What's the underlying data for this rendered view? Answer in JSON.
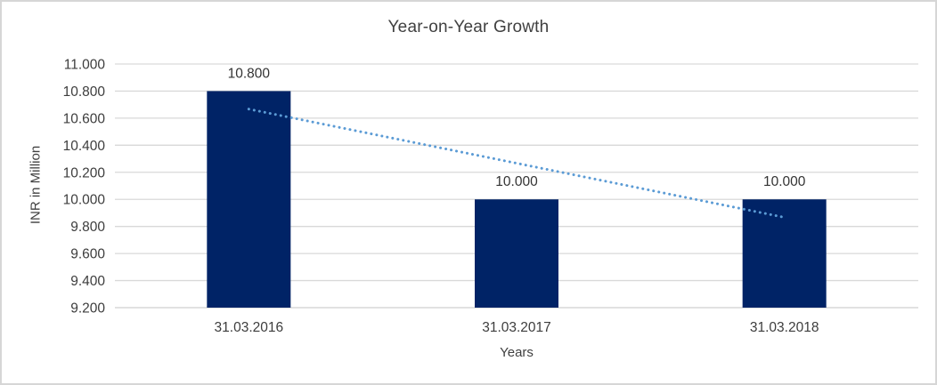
{
  "chart_data": {
    "type": "bar",
    "title": "Year-on-Year Growth",
    "xlabel": "Years",
    "ylabel": "INR in Million",
    "categories": [
      "31.03.2016",
      "31.03.2017",
      "31.03.2018"
    ],
    "values": [
      10.8,
      10.0,
      10.0
    ],
    "value_labels": [
      "10.800",
      "10.000",
      "10.000"
    ],
    "ylim": [
      9.2,
      11.0
    ],
    "ytick_step": 0.2,
    "ytick_labels": [
      "9.200",
      "9.400",
      "9.600",
      "9.800",
      "10.000",
      "10.200",
      "10.400",
      "10.600",
      "10.800",
      "11.000"
    ],
    "grid": true,
    "legend": false,
    "bar_color": "#002366",
    "trendline": {
      "type": "linear",
      "style": "dotted",
      "color": "#5B9BD5",
      "start_value": 10.667,
      "end_value": 9.867
    }
  },
  "colors": {
    "gridline": "#d9d9d9",
    "axis_line": "#cfcfcf",
    "tick_text": "#3d3d3d",
    "label_text": "#333333",
    "border": "#d6d6d6",
    "background": "#ffffff"
  }
}
